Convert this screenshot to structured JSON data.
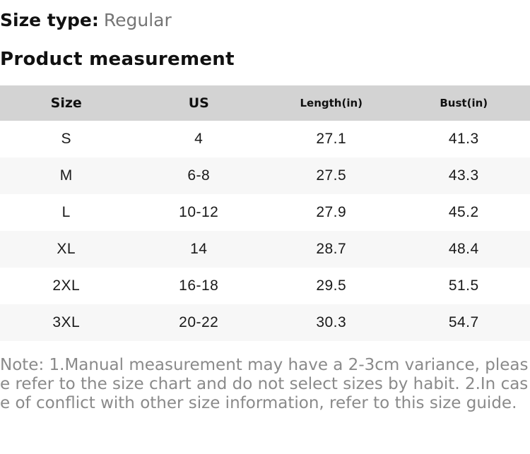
{
  "size_type": {
    "label": "Size type:",
    "value": "Regular"
  },
  "section_title": "Product measurement",
  "table": {
    "columns": [
      "Size",
      "US",
      "Length(in)",
      "Bust(in)"
    ],
    "rows": [
      [
        "S",
        "4",
        "27.1",
        "41.3"
      ],
      [
        "M",
        "6-8",
        "27.5",
        "43.3"
      ],
      [
        "L",
        "10-12",
        "27.9",
        "45.2"
      ],
      [
        "XL",
        "14",
        "28.7",
        "48.4"
      ],
      [
        "2XL",
        "16-18",
        "29.5",
        "51.5"
      ],
      [
        "3XL",
        "20-22",
        "30.3",
        "54.7"
      ]
    ]
  },
  "note": "Note: 1.Manual measurement may have a 2-3cm variance, please refer to the size chart and do not select sizes by habit. 2.In case of conflict with other size information, refer to this size guide.",
  "colors": {
    "header_bg": "#d3d3d3",
    "alt_row_bg": "#f7f7f7",
    "text": "#1a1a1a",
    "muted_value_text": "#757575",
    "note_text": "#8a8a8a"
  }
}
